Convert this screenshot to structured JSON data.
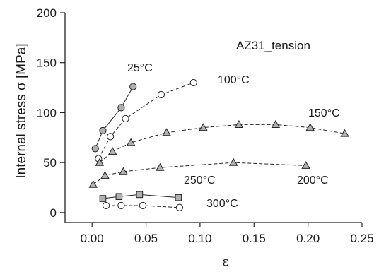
{
  "chart_data": {
    "type": "scatter",
    "title": "AZ31_tension",
    "xlabel": "ε",
    "ylabel": "Internal stress σ [MPa]",
    "xlim": [
      -0.025,
      0.25
    ],
    "ylim": [
      -10,
      200
    ],
    "xticks": [
      "0.00",
      "0.05",
      "0.10",
      "0.15",
      "0.20",
      "0.25"
    ],
    "xtick_values": [
      0,
      0.05,
      0.1,
      0.15,
      0.2,
      0.25
    ],
    "yticks": [
      "0",
      "50",
      "100",
      "150",
      "200"
    ],
    "ytick_values": [
      0,
      50,
      100,
      150,
      200
    ],
    "grid": false,
    "series": [
      {
        "name": "25°C",
        "marker": "circle",
        "fill": "#b0b0b0",
        "line": "solid",
        "x": [
          0.003,
          0.01,
          0.027,
          0.038
        ],
        "y": [
          64,
          82,
          105,
          126
        ]
      },
      {
        "name": "100°C",
        "marker": "circle",
        "fill": "#ffffff",
        "line": "dashed",
        "x": [
          0.006,
          0.017,
          0.031,
          0.064,
          0.094
        ],
        "y": [
          54,
          76,
          94,
          118,
          130
        ]
      },
      {
        "name": "150°C",
        "marker": "triangle",
        "fill": "#b0b0b0",
        "line": "dashed",
        "x": [
          0.007,
          0.019,
          0.036,
          0.069,
          0.103,
          0.136,
          0.17,
          0.202,
          0.234
        ],
        "y": [
          50,
          61,
          70,
          80,
          85,
          88,
          88,
          85,
          79
        ]
      },
      {
        "name": "200°C",
        "marker": "triangle",
        "fill": "#b0b0b0",
        "line": "dashed",
        "x": [
          0.001,
          0.012,
          0.029,
          0.063,
          0.131,
          0.198
        ],
        "y": [
          28,
          37,
          41,
          45,
          50,
          47
        ]
      },
      {
        "name": "250°C",
        "marker": "square",
        "fill": "#b0b0b0",
        "line": "solid",
        "x": [
          0.01,
          0.025,
          0.044,
          0.08
        ],
        "y": [
          14,
          16,
          18,
          15
        ]
      },
      {
        "name": "300°C",
        "marker": "circle",
        "fill": "#ffffff",
        "line": "dashed",
        "x": [
          0.013,
          0.027,
          0.047,
          0.081
        ],
        "y": [
          7,
          7,
          7,
          5
        ]
      }
    ]
  }
}
